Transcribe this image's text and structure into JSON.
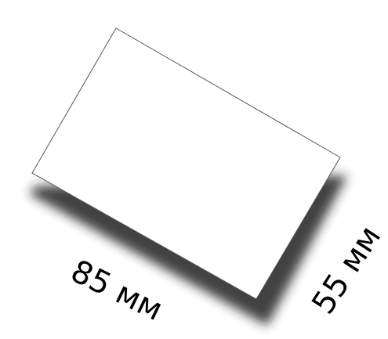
{
  "card": {
    "fill_color": "#ffffff",
    "border_color": "#555555",
    "shadow_color": "#222222"
  },
  "labels": {
    "width_label": "85 мм",
    "height_label": "55 мм"
  }
}
